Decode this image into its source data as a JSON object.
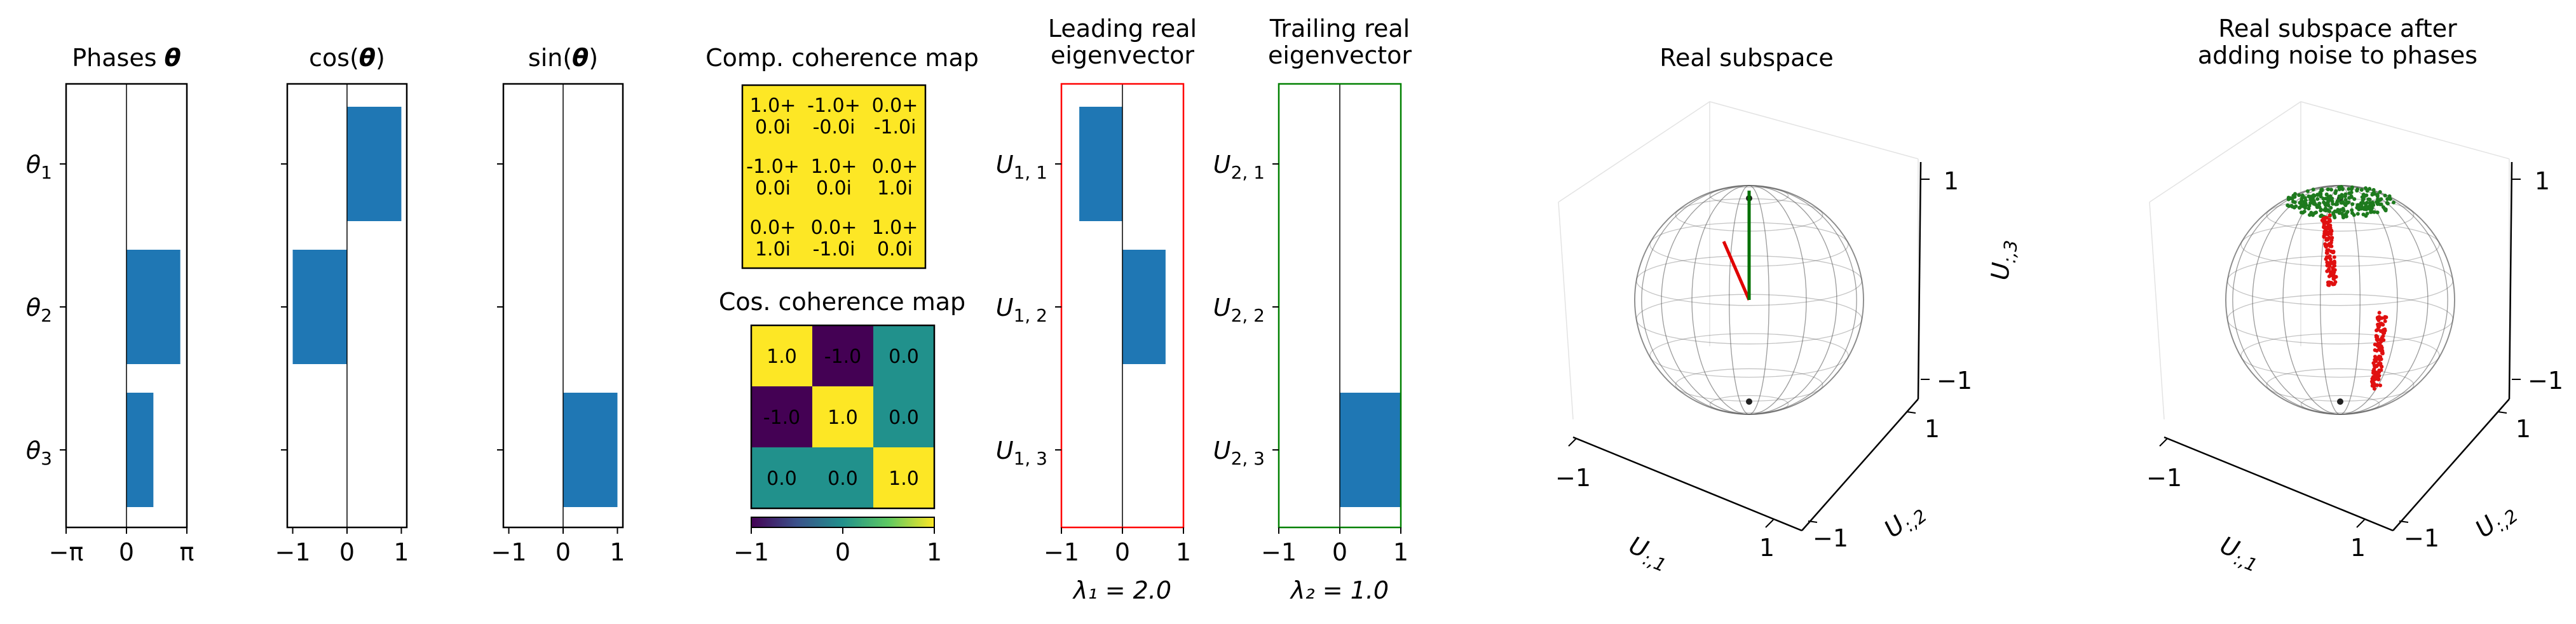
{
  "colors": {
    "bar": "#1f77b4",
    "yellow": "#fde725",
    "purple": "#440154",
    "teal": "#21918c",
    "leading_frame": "#ff0000",
    "trailing_frame": "#008000",
    "noise_red": "#e01010",
    "noise_green": "#1e7a1e"
  },
  "chart_data": [
    {
      "type": "bar",
      "orientation": "horizontal",
      "title_parts": [
        "Phases ",
        "θ"
      ],
      "categories": [
        "θ",
        "θ",
        "θ"
      ],
      "category_subscripts": [
        "1",
        "2",
        "3"
      ],
      "values": [
        0,
        2.8,
        1.4
      ],
      "xlim": [
        -3.1416,
        3.1416
      ],
      "xticks": [
        -3.1416,
        0,
        3.1416
      ],
      "xtick_labels": [
        "−π",
        "0",
        "π"
      ]
    },
    {
      "type": "bar",
      "orientation": "horizontal",
      "title_parts": [
        "cos(",
        "θ",
        ")"
      ],
      "categories": [
        "",
        "",
        ""
      ],
      "values": [
        1.0,
        -1.0,
        0.0
      ],
      "xlim": [
        -1.1,
        1.1
      ],
      "xticks": [
        -1,
        0,
        1
      ],
      "xtick_labels": [
        "−1",
        "0",
        "1"
      ]
    },
    {
      "type": "bar",
      "orientation": "horizontal",
      "title_parts": [
        "sin(",
        "θ",
        ")"
      ],
      "categories": [
        "",
        "",
        ""
      ],
      "values": [
        0.0,
        0.0,
        1.0
      ],
      "xlim": [
        -1.1,
        1.1
      ],
      "xticks": [
        -1,
        0,
        1
      ],
      "xtick_labels": [
        "−1",
        "0",
        "1"
      ]
    },
    {
      "type": "heatmap",
      "title": "Comp. coherence map",
      "cells": [
        [
          "1.0+\n0.0i",
          "-1.0+\n-0.0i",
          "0.0+\n-1.0i"
        ],
        [
          "-1.0+\n0.0i",
          "1.0+\n0.0i",
          "0.0+\n1.0i"
        ],
        [
          "0.0+\n1.0i",
          "0.0+\n-1.0i",
          "1.0+\n0.0i"
        ]
      ]
    },
    {
      "type": "heatmap",
      "title": "Cos. coherence map",
      "values": [
        [
          1.0,
          -1.0,
          0.0
        ],
        [
          -1.0,
          1.0,
          0.0
        ],
        [
          0.0,
          0.0,
          1.0
        ]
      ],
      "cell_labels": [
        [
          "1.0",
          "-1.0",
          "0.0"
        ],
        [
          "-1.0",
          "1.0",
          "0.0"
        ],
        [
          "0.0",
          "0.0",
          "1.0"
        ]
      ],
      "colorbar": {
        "range": [
          -1,
          1
        ],
        "ticks": [
          -1,
          0,
          1
        ],
        "tick_labels": [
          "−1",
          "0",
          "1"
        ]
      }
    },
    {
      "type": "bar",
      "orientation": "horizontal",
      "title": "Leading real\neigenvector",
      "categories": [
        "U",
        "U",
        "U"
      ],
      "category_subscripts": [
        "1, 1",
        "1, 2",
        "1, 3"
      ],
      "values": [
        -0.7071,
        0.7071,
        0.0
      ],
      "xlim": [
        -1,
        1
      ],
      "xticks": [
        -1,
        0,
        1
      ],
      "xtick_labels": [
        "−1",
        "0",
        "1"
      ],
      "annotation": "λ₁ = 2.0"
    },
    {
      "type": "bar",
      "orientation": "horizontal",
      "title": "Trailing real\neigenvector",
      "categories": [
        "U",
        "U",
        "U"
      ],
      "category_subscripts": [
        "2, 1",
        "2, 2",
        "2, 3"
      ],
      "values": [
        0.0,
        0.0,
        1.0
      ],
      "xlim": [
        -1,
        1
      ],
      "xticks": [
        -1,
        0,
        1
      ],
      "xtick_labels": [
        "−1",
        "0",
        "1"
      ],
      "annotation": "λ₂ = 1.0"
    },
    {
      "type": "scatter",
      "projection": "3d",
      "title": "Real subspace",
      "axes": {
        "xlabel": "U",
        "xsub": ":,1",
        "ylabel": "U",
        "ysub": ":,2",
        "zlabel": "U",
        "zsub": ":,3"
      },
      "xticks": [
        "−1",
        "1"
      ],
      "yticks": [
        "−1",
        "1"
      ],
      "zticks": [
        "−1",
        "1"
      ],
      "vectors": [
        {
          "color": "red",
          "value": [
            -0.7071,
            0.7071,
            0.0
          ]
        },
        {
          "color": "green",
          "value": [
            0.0,
            0.0,
            1.0
          ]
        }
      ]
    },
    {
      "type": "scatter",
      "projection": "3d",
      "title": "Real subspace after\nadding noise to phases",
      "axes": {
        "xlabel": "U",
        "xsub": ":,1",
        "ylabel": "U",
        "ysub": ":,2",
        "zlabel": "U",
        "zsub": ":,3"
      },
      "xticks": [
        "−1",
        "1"
      ],
      "yticks": [
        "−1",
        "1"
      ],
      "zticks": [
        "−1",
        "1"
      ],
      "point_clouds": [
        {
          "color": "green",
          "center": [
            0.0,
            0.0,
            1.0
          ]
        },
        {
          "color": "red",
          "center": [
            -0.7071,
            0.7071,
            0.0
          ]
        },
        {
          "color": "red",
          "center": [
            0.7071,
            -0.7071,
            0.0
          ]
        }
      ]
    }
  ]
}
